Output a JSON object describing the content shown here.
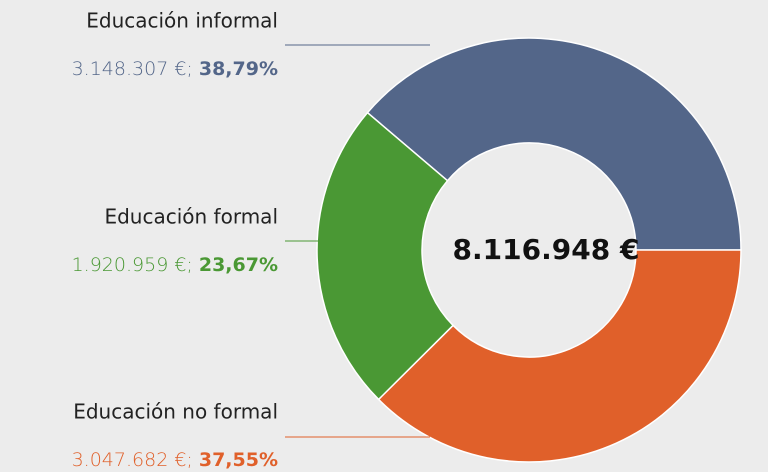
{
  "chart_data": {
    "type": "donut",
    "categories": [
      "Educación informal",
      "Educación formal",
      "Educación no formal"
    ],
    "values": [
      3148307,
      1920959,
      3047682
    ],
    "value_labels": [
      "3.148.307 €",
      "1.920.959 €",
      "3.047.682 €"
    ],
    "separator": "; ",
    "percentages": [
      38.79,
      23.67,
      37.55
    ],
    "percentage_labels": [
      "38,79%",
      "23,67%",
      "37,55%"
    ],
    "colors": [
      "#536689",
      "#4a9834",
      "#e0602a"
    ],
    "total": 8116948,
    "total_label": "8.116.948 €"
  }
}
